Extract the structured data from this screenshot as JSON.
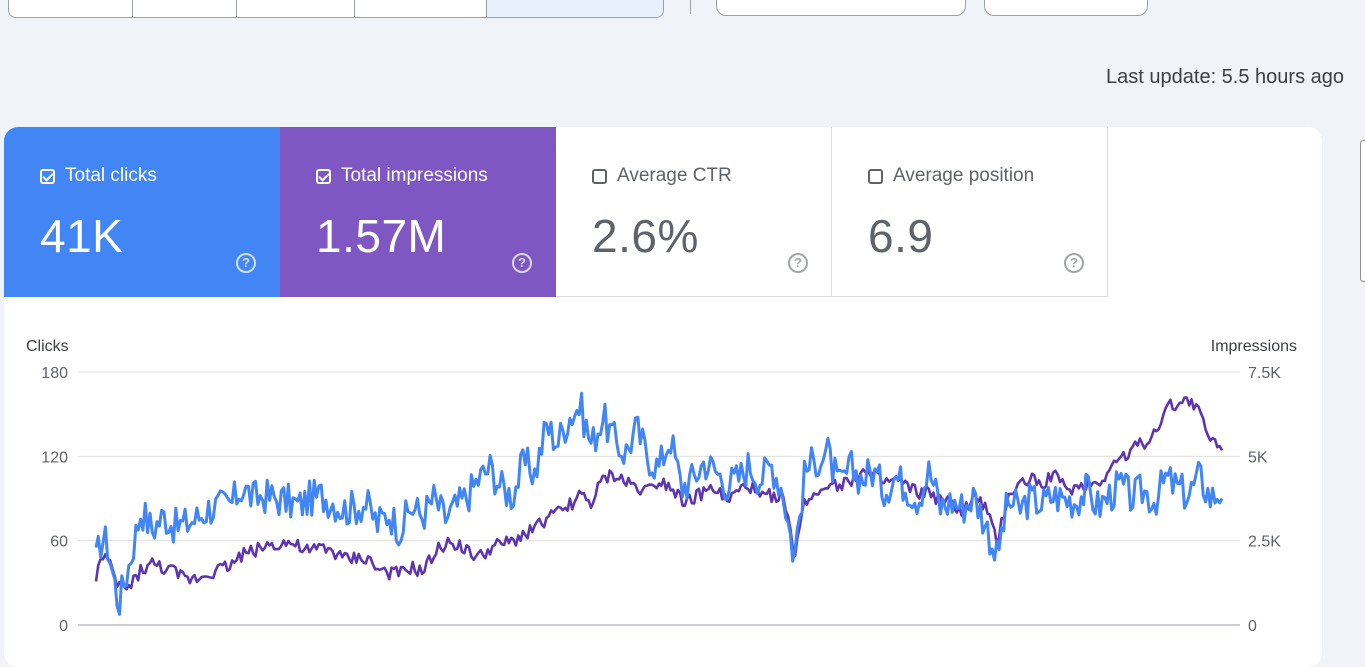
{
  "last_update": "Last update: 5.5 hours ago",
  "metrics": [
    {
      "label": "Total clicks",
      "value": "41K",
      "checked": true,
      "color": "#4285f4"
    },
    {
      "label": "Total impressions",
      "value": "1.57M",
      "checked": true,
      "color": "#7e57c2"
    },
    {
      "label": "Average CTR",
      "value": "2.6%",
      "checked": false,
      "color": "#ffffff"
    },
    {
      "label": "Average position",
      "value": "6.9",
      "checked": false,
      "color": "#ffffff"
    }
  ],
  "help_icon": "help-circle-icon",
  "help_glyph": "?",
  "chart_data": {
    "type": "line",
    "left_axis": {
      "title": "Clicks",
      "ticks": [
        "0",
        "60",
        "120",
        "180"
      ],
      "ylim": [
        0,
        180
      ]
    },
    "right_axis": {
      "title": "Impressions",
      "ticks": [
        "0",
        "2.5K",
        "5K",
        "7.5K"
      ],
      "ylim": [
        0,
        7500
      ]
    },
    "grid": true,
    "series": [
      {
        "name": "Clicks",
        "color": "#4285f4",
        "axis": "left",
        "keypoints": [
          [
            0,
            45
          ],
          [
            0.5,
            62
          ],
          [
            1,
            58
          ],
          [
            2,
            15
          ],
          [
            3,
            45
          ],
          [
            4,
            82
          ],
          [
            5,
            68
          ],
          [
            6,
            78
          ],
          [
            7,
            70
          ],
          [
            8,
            72
          ],
          [
            9,
            76
          ],
          [
            10,
            83
          ],
          [
            12,
            86
          ],
          [
            13,
            98
          ],
          [
            14,
            90
          ],
          [
            15,
            92
          ],
          [
            17,
            88
          ],
          [
            18,
            85
          ],
          [
            19,
            90
          ],
          [
            20,
            92
          ],
          [
            21,
            88
          ],
          [
            22,
            82
          ],
          [
            24,
            86
          ],
          [
            25,
            72
          ],
          [
            26,
            80
          ],
          [
            27,
            68
          ],
          [
            28,
            84
          ],
          [
            29,
            78
          ],
          [
            30,
            90
          ],
          [
            31,
            76
          ],
          [
            32,
            84
          ],
          [
            33,
            92
          ],
          [
            34,
            104
          ],
          [
            35,
            112
          ],
          [
            36,
            98
          ],
          [
            37,
            92
          ],
          [
            38,
            116
          ],
          [
            39,
            108
          ],
          [
            40,
            142
          ],
          [
            41,
            130
          ],
          [
            42,
            148
          ],
          [
            43,
            156
          ],
          [
            44,
            128
          ],
          [
            45,
            148
          ],
          [
            46,
            132
          ],
          [
            47,
            122
          ],
          [
            48,
            140
          ],
          [
            49,
            120
          ],
          [
            50,
            112
          ],
          [
            51,
            134
          ],
          [
            52,
            98
          ],
          [
            53,
            104
          ],
          [
            54,
            116
          ],
          [
            55,
            110
          ],
          [
            56,
            100
          ],
          [
            57,
            104
          ],
          [
            58,
            114
          ],
          [
            59,
            104
          ],
          [
            60,
            114
          ],
          [
            61,
            96
          ],
          [
            62,
            48
          ],
          [
            63,
            110
          ],
          [
            64,
            118
          ],
          [
            65,
            122
          ],
          [
            66,
            98
          ],
          [
            67,
            112
          ],
          [
            68,
            104
          ],
          [
            69,
            110
          ],
          [
            70,
            96
          ],
          [
            71,
            106
          ],
          [
            72,
            98
          ],
          [
            73,
            90
          ],
          [
            74,
            110
          ],
          [
            75,
            84
          ],
          [
            76,
            88
          ],
          [
            77,
            84
          ],
          [
            78,
            92
          ],
          [
            79,
            72
          ],
          [
            80,
            48
          ],
          [
            81,
            88
          ],
          [
            82,
            82
          ],
          [
            83,
            90
          ],
          [
            84,
            86
          ],
          [
            85,
            92
          ],
          [
            86,
            90
          ],
          [
            87,
            88
          ],
          [
            88,
            96
          ],
          [
            89,
            84
          ],
          [
            90,
            92
          ],
          [
            91,
            100
          ],
          [
            92,
            90
          ],
          [
            93,
            96
          ],
          [
            94,
            88
          ],
          [
            95,
            104
          ],
          [
            96,
            98
          ],
          [
            97,
            92
          ],
          [
            98,
            106
          ],
          [
            99,
            90
          ],
          [
            100,
            96
          ]
        ]
      },
      {
        "name": "Impressions",
        "color": "#5e35b1",
        "axis": "right",
        "keypoints": [
          [
            0,
            1450
          ],
          [
            0.5,
            2000
          ],
          [
            1,
            1900
          ],
          [
            2,
            1150
          ],
          [
            3,
            1100
          ],
          [
            4,
            1650
          ],
          [
            5,
            1800
          ],
          [
            6,
            1700
          ],
          [
            7,
            1550
          ],
          [
            8,
            1350
          ],
          [
            9,
            1400
          ],
          [
            10,
            1550
          ],
          [
            12,
            1800
          ],
          [
            13,
            2100
          ],
          [
            14,
            2200
          ],
          [
            15,
            2350
          ],
          [
            17,
            2450
          ],
          [
            18,
            2300
          ],
          [
            19,
            2150
          ],
          [
            20,
            2300
          ],
          [
            21,
            2200
          ],
          [
            22,
            1950
          ],
          [
            24,
            2000
          ],
          [
            25,
            1650
          ],
          [
            26,
            1550
          ],
          [
            27,
            1500
          ],
          [
            28,
            1700
          ],
          [
            29,
            1550
          ],
          [
            30,
            2100
          ],
          [
            31,
            2400
          ],
          [
            32,
            2450
          ],
          [
            33,
            2150
          ],
          [
            34,
            2000
          ],
          [
            35,
            2250
          ],
          [
            36,
            2400
          ],
          [
            37,
            2450
          ],
          [
            38,
            2700
          ],
          [
            39,
            2900
          ],
          [
            40,
            3150
          ],
          [
            41,
            3300
          ],
          [
            42,
            3550
          ],
          [
            43,
            3850
          ],
          [
            44,
            3600
          ],
          [
            45,
            4300
          ],
          [
            46,
            4450
          ],
          [
            47,
            4250
          ],
          [
            48,
            4100
          ],
          [
            49,
            4000
          ],
          [
            50,
            4300
          ],
          [
            51,
            4150
          ],
          [
            52,
            3750
          ],
          [
            53,
            3700
          ],
          [
            54,
            3950
          ],
          [
            55,
            4050
          ],
          [
            56,
            3650
          ],
          [
            57,
            3950
          ],
          [
            58,
            4150
          ],
          [
            59,
            3750
          ],
          [
            60,
            3850
          ],
          [
            61,
            3850
          ],
          [
            62,
            2100
          ],
          [
            63,
            3700
          ],
          [
            64,
            3900
          ],
          [
            65,
            4250
          ],
          [
            66,
            4150
          ],
          [
            67,
            4300
          ],
          [
            68,
            4550
          ],
          [
            69,
            4400
          ],
          [
            70,
            4200
          ],
          [
            71,
            4300
          ],
          [
            72,
            4100
          ],
          [
            73,
            3900
          ],
          [
            74,
            3950
          ],
          [
            75,
            3650
          ],
          [
            76,
            3600
          ],
          [
            77,
            3350
          ],
          [
            78,
            3750
          ],
          [
            79,
            3500
          ],
          [
            80,
            2400
          ],
          [
            81,
            3850
          ],
          [
            82,
            4150
          ],
          [
            83,
            4350
          ],
          [
            84,
            4200
          ],
          [
            85,
            4500
          ],
          [
            86,
            4050
          ],
          [
            87,
            4050
          ],
          [
            88,
            4200
          ],
          [
            89,
            4200
          ],
          [
            90,
            4600
          ],
          [
            91,
            5000
          ],
          [
            92,
            5200
          ],
          [
            93,
            5400
          ],
          [
            94,
            5700
          ],
          [
            95,
            6400
          ],
          [
            96,
            6600
          ],
          [
            97,
            6700
          ],
          [
            98,
            6300
          ],
          [
            99,
            5450
          ],
          [
            100,
            5300
          ]
        ]
      }
    ]
  }
}
